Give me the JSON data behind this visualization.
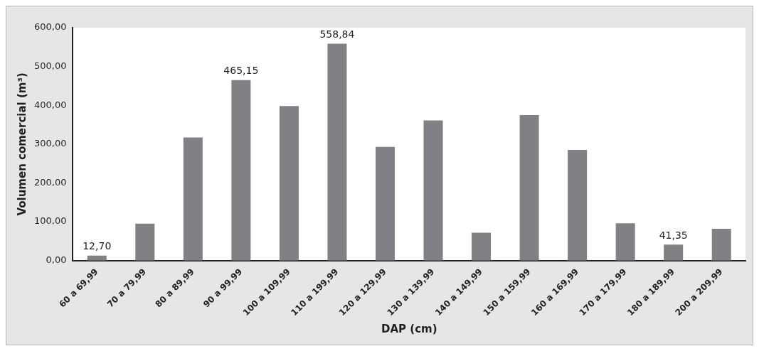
{
  "chart_data": {
    "type": "bar",
    "xlabel": "DAP (cm)",
    "ylabel": "Volumen comercial (m³)",
    "categories": [
      "60 a 69,99",
      "70 a 79,99",
      "80 a 89,99",
      "90 a 99,99",
      "100 a 109,99",
      "110 a 199,99",
      "120 a 129,99",
      "130 a 139,99",
      "140 a 149,99",
      "150 a 159,99",
      "160 a 169,99",
      "170 a 179,99",
      "180 a 189,99",
      "200 a 209,99"
    ],
    "values": [
      12.7,
      95,
      317,
      465.15,
      398,
      558.84,
      293,
      361,
      72,
      375,
      285,
      96,
      41.35,
      82
    ],
    "value_labels": [
      "12,70",
      null,
      null,
      "465,15",
      null,
      "558,84",
      null,
      null,
      null,
      null,
      null,
      null,
      "41,35",
      null
    ],
    "color": "#808184",
    "ylim": [
      0,
      600
    ],
    "yticks": [
      {
        "value": 0,
        "label": "0,00"
      },
      {
        "value": 100,
        "label": "100,00"
      },
      {
        "value": 200,
        "label": "200,00"
      },
      {
        "value": 300,
        "label": "300,00"
      },
      {
        "value": 400,
        "label": "400,00"
      },
      {
        "value": 500,
        "label": "500,00"
      },
      {
        "value": 600,
        "label": "600,00"
      }
    ],
    "grid": false,
    "legend": false
  }
}
